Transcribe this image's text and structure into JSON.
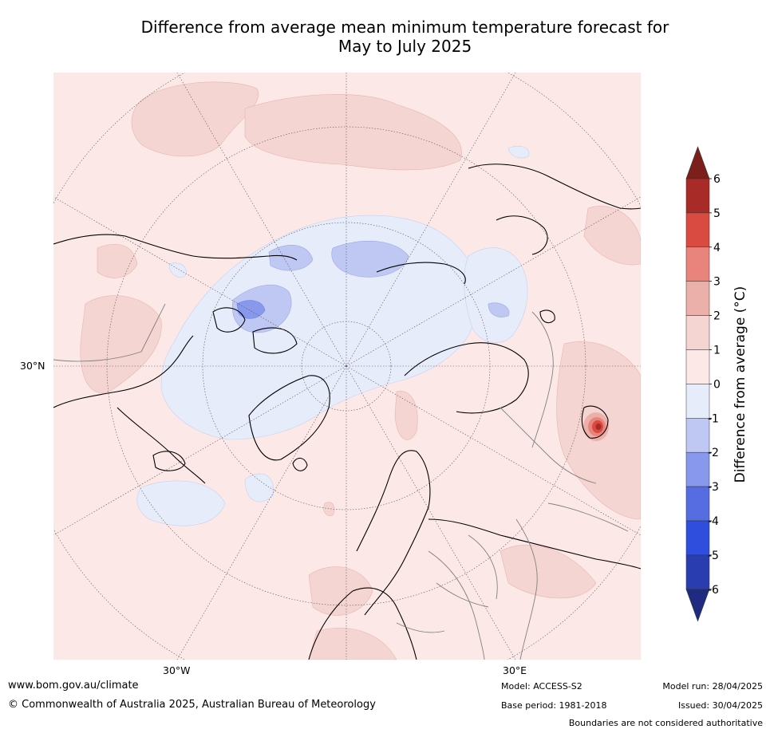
{
  "title_line1": "Difference from average mean minimum temperature forecast for",
  "title_line2": "May to July 2025",
  "map": {
    "lat_label": "30°N",
    "lon_label_west": "30°W",
    "lon_label_east": "30°E"
  },
  "colorbar": {
    "title": "Difference from average ($^\\circ$C)",
    "title_display": "Difference from average (°C)",
    "ticks": [
      "6",
      "5",
      "4",
      "3",
      "2",
      "1",
      "0",
      "-1",
      "-2",
      "-3",
      "-4",
      "-5",
      "-6"
    ],
    "bins": [
      {
        "range": "5 to 6",
        "color": "#a82b28"
      },
      {
        "range": "4 to 5",
        "color": "#d94a40"
      },
      {
        "range": "3 to 4",
        "color": "#e8847c"
      },
      {
        "range": "2 to 3",
        "color": "#ecb0aa"
      },
      {
        "range": "1 to 2",
        "color": "#f5d5d1"
      },
      {
        "range": "0 to 1",
        "color": "#fce9e7"
      },
      {
        "range": "-1 to 0",
        "color": "#e7ecfb"
      },
      {
        "range": "-2 to -1",
        "color": "#bfc8f2"
      },
      {
        "range": "-3 to -2",
        "color": "#8898ec"
      },
      {
        "range": "-4 to -3",
        "color": "#566de2"
      },
      {
        "range": "-5 to -4",
        "color": "#2f4ede"
      },
      {
        "range": "-6 to -5",
        "color": "#2a3db0"
      }
    ],
    "over_color": "#7a1f1a",
    "under_color": "#1f2b80"
  },
  "footer": {
    "website": "www.bom.gov.au/climate",
    "copyright": "© Commonwealth of Australia 2025, Australian Bureau of Meteorology",
    "model": "Model: ACCESS-S2",
    "base_period": "Base period: 1981-2018",
    "model_run": "Model run: 28/04/2025",
    "issued": "Issued: 30/04/2025",
    "disclaimer": "Boundaries are not considered authoritative"
  }
}
